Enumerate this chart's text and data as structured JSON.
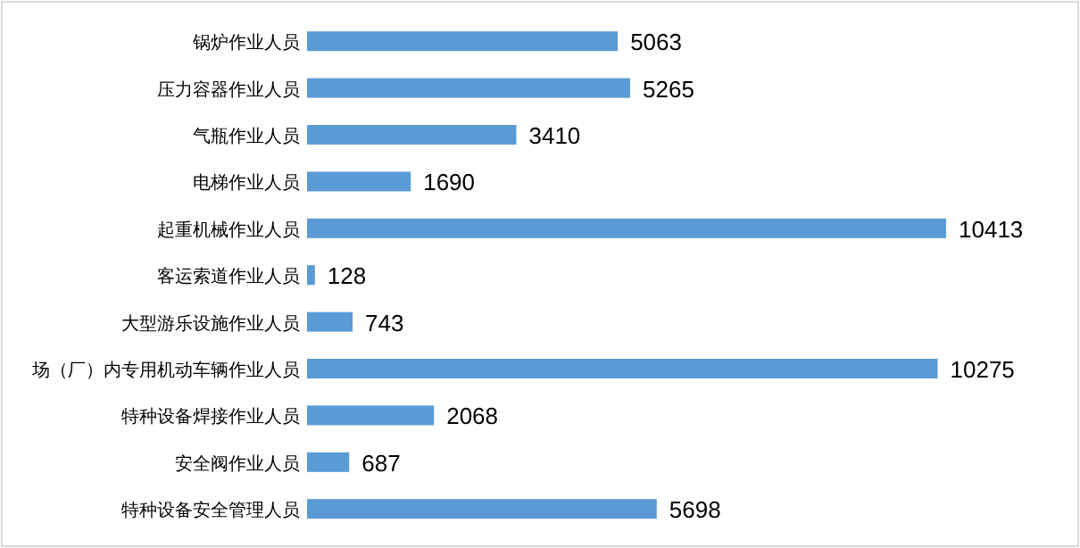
{
  "chart_data": {
    "type": "bar",
    "orientation": "horizontal",
    "data_labels": true,
    "color": "#5b9bd5",
    "categories": [
      "锅炉作业人员",
      "压力容器作业人员",
      "气瓶作业人员",
      "电梯作业人员",
      "起重机械作业人员",
      "客运索道作业人员",
      "大型游乐设施作业人员",
      "场（厂）内专用机动车辆作业人员",
      "特种设备焊接作业人员",
      "安全阀作业人员",
      "特种设备安全管理人员"
    ],
    "values": [
      5063,
      5265,
      3410,
      1690,
      10413,
      128,
      743,
      10275,
      2068,
      687,
      5698
    ]
  }
}
